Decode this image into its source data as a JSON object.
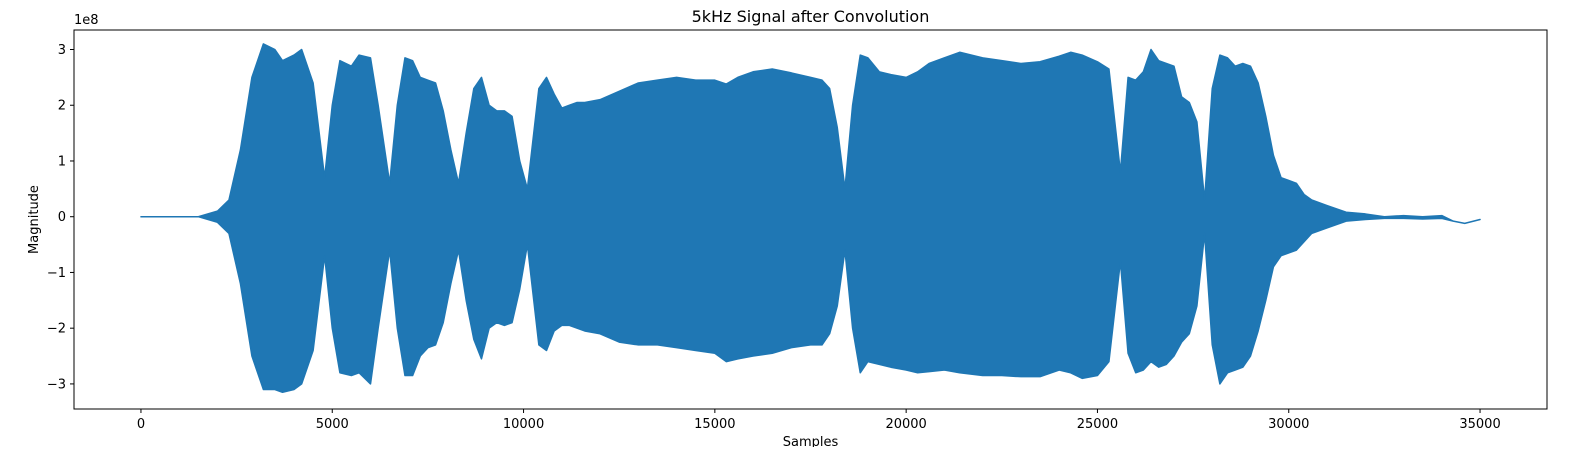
{
  "chart_data": {
    "type": "area",
    "title": "5kHz Signal after Convolution",
    "xlabel": "Samples",
    "ylabel": "Magnitude",
    "y_offset_label": "1e8",
    "xlim": [
      -1750,
      36750
    ],
    "ylim": [
      -3.45,
      3.35
    ],
    "x_ticks": [
      0,
      5000,
      10000,
      15000,
      20000,
      25000,
      30000,
      35000
    ],
    "y_ticks": [
      -3,
      -2,
      -1,
      0,
      1,
      2,
      3
    ],
    "grid": false,
    "legend": "none",
    "series": [
      {
        "color": "#1f77b4",
        "envelope": {
          "x": [
            0,
            500,
            1000,
            1500,
            2000,
            2300,
            2600,
            2900,
            3200,
            3500,
            3700,
            4000,
            4200,
            4500,
            4800,
            5000,
            5200,
            5500,
            5700,
            6000,
            6200,
            6500,
            6700,
            6900,
            7100,
            7300,
            7500,
            7700,
            7900,
            8100,
            8300,
            8500,
            8700,
            8900,
            9100,
            9300,
            9500,
            9700,
            9900,
            10100,
            10400,
            10600,
            10800,
            11000,
            11200,
            11400,
            11600,
            12000,
            12500,
            13000,
            13500,
            14000,
            14500,
            15000,
            15300,
            15600,
            16000,
            16500,
            17000,
            17500,
            17800,
            18000,
            18200,
            18400,
            18600,
            18800,
            19000,
            19300,
            19600,
            20000,
            20300,
            20600,
            21000,
            21400,
            22000,
            22500,
            23000,
            23500,
            24000,
            24300,
            24600,
            25000,
            25300,
            25600,
            25800,
            26000,
            26200,
            26400,
            26600,
            26800,
            27000,
            27200,
            27400,
            27600,
            27800,
            28000,
            28200,
            28400,
            28600,
            28800,
            29000,
            29200,
            29400,
            29600,
            29800,
            30000,
            30200,
            30400,
            30600,
            31000,
            31500,
            32000,
            32500,
            33000,
            33500,
            34000,
            34300,
            34600,
            35000
          ],
          "upper": [
            0.0,
            0.0,
            0.0,
            0.0,
            0.1,
            0.3,
            1.2,
            2.5,
            3.1,
            3.0,
            2.8,
            2.9,
            3.0,
            2.4,
            0.7,
            2.0,
            2.8,
            2.7,
            2.9,
            2.85,
            2.0,
            0.6,
            2.0,
            2.85,
            2.8,
            2.5,
            2.45,
            2.4,
            1.9,
            1.2,
            0.6,
            1.5,
            2.3,
            2.5,
            2.0,
            1.9,
            1.9,
            1.8,
            1.0,
            0.5,
            2.3,
            2.5,
            2.2,
            1.95,
            2.0,
            2.05,
            2.05,
            2.1,
            2.25,
            2.4,
            2.45,
            2.5,
            2.45,
            2.45,
            2.38,
            2.5,
            2.6,
            2.65,
            2.58,
            2.5,
            2.45,
            2.3,
            1.6,
            0.5,
            2.0,
            2.9,
            2.85,
            2.6,
            2.55,
            2.5,
            2.6,
            2.75,
            2.85,
            2.95,
            2.85,
            2.8,
            2.75,
            2.78,
            2.88,
            2.95,
            2.9,
            2.78,
            2.65,
            0.8,
            2.5,
            2.45,
            2.6,
            3.0,
            2.8,
            2.75,
            2.7,
            2.15,
            2.05,
            1.7,
            0.3,
            2.3,
            2.9,
            2.85,
            2.7,
            2.75,
            2.7,
            2.4,
            1.8,
            1.1,
            0.7,
            0.65,
            0.6,
            0.4,
            0.3,
            0.2,
            0.08,
            0.05,
            0.0,
            0.02,
            0.0,
            0.02,
            -0.08,
            -0.12,
            -0.05
          ],
          "lower": [
            0.0,
            0.0,
            0.0,
            0.0,
            -0.1,
            -0.3,
            -1.2,
            -2.5,
            -3.1,
            -3.1,
            -3.15,
            -3.1,
            -3.0,
            -2.4,
            -0.7,
            -2.0,
            -2.8,
            -2.85,
            -2.8,
            -3.0,
            -2.0,
            -0.6,
            -2.0,
            -2.85,
            -2.85,
            -2.5,
            -2.35,
            -2.3,
            -1.9,
            -1.2,
            -0.6,
            -1.5,
            -2.2,
            -2.55,
            -2.0,
            -1.9,
            -1.95,
            -1.9,
            -1.3,
            -0.5,
            -2.3,
            -2.4,
            -2.05,
            -1.95,
            -1.95,
            -2.0,
            -2.05,
            -2.1,
            -2.25,
            -2.3,
            -2.3,
            -2.35,
            -2.4,
            -2.45,
            -2.6,
            -2.55,
            -2.5,
            -2.45,
            -2.35,
            -2.3,
            -2.3,
            -2.1,
            -1.6,
            -0.6,
            -2.0,
            -2.8,
            -2.6,
            -2.65,
            -2.7,
            -2.75,
            -2.8,
            -2.78,
            -2.75,
            -2.8,
            -2.85,
            -2.85,
            -2.87,
            -2.87,
            -2.75,
            -2.8,
            -2.9,
            -2.85,
            -2.6,
            -0.8,
            -2.45,
            -2.8,
            -2.75,
            -2.6,
            -2.7,
            -2.65,
            -2.5,
            -2.25,
            -2.1,
            -1.6,
            -0.3,
            -2.3,
            -3.0,
            -2.8,
            -2.75,
            -2.7,
            -2.5,
            -2.05,
            -1.5,
            -0.9,
            -0.7,
            -0.65,
            -0.6,
            -0.45,
            -0.3,
            -0.2,
            -0.08,
            -0.05,
            -0.03,
            -0.03,
            -0.04,
            -0.03,
            -0.08,
            -0.12,
            -0.05
          ]
        }
      }
    ]
  }
}
